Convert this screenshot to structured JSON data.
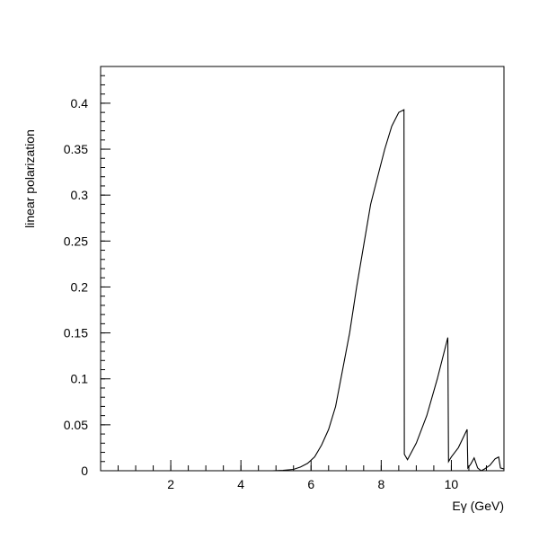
{
  "chart_data": {
    "type": "line",
    "title": "",
    "xlabel": "Eγ (GeV)",
    "ylabel": "linear polarization",
    "xlim": [
      0,
      11.5
    ],
    "ylim": [
      0,
      0.44
    ],
    "grid": false,
    "legend": "none",
    "line_color": "#000000",
    "x_ticks": [
      {
        "value": 2,
        "label": "2"
      },
      {
        "value": 4,
        "label": "4"
      },
      {
        "value": 6,
        "label": "6"
      },
      {
        "value": 8,
        "label": "8"
      },
      {
        "value": 10,
        "label": "10"
      }
    ],
    "y_ticks": [
      {
        "value": 0,
        "label": "0"
      },
      {
        "value": 0.05,
        "label": "0.05"
      },
      {
        "value": 0.1,
        "label": "0.1"
      },
      {
        "value": 0.15,
        "label": "0.15"
      },
      {
        "value": 0.2,
        "label": "0.2"
      },
      {
        "value": 0.25,
        "label": "0.25"
      },
      {
        "value": 0.3,
        "label": "0.3"
      },
      {
        "value": 0.35,
        "label": "0.35"
      },
      {
        "value": 0.4,
        "label": "0.4"
      }
    ],
    "series": [
      {
        "x": [
          4.9,
          5.2,
          5.5,
          5.7,
          5.9,
          6.1,
          6.3,
          6.5,
          6.7,
          6.9,
          7.1,
          7.3,
          7.5,
          7.7,
          7.9,
          8.1,
          8.3,
          8.5,
          8.65,
          8.66,
          8.75,
          9.0,
          9.3,
          9.6,
          9.9,
          9.92,
          10.0,
          10.2,
          10.45,
          10.47,
          10.55,
          10.65,
          10.75,
          10.85,
          10.95,
          11.1,
          11.25,
          11.35,
          11.4,
          11.5
        ],
        "y": [
          0.0,
          0.0005,
          0.0015,
          0.004,
          0.008,
          0.015,
          0.028,
          0.045,
          0.07,
          0.11,
          0.15,
          0.2,
          0.245,
          0.29,
          0.32,
          0.35,
          0.375,
          0.39,
          0.393,
          0.018,
          0.012,
          0.03,
          0.06,
          0.1,
          0.145,
          0.01,
          0.015,
          0.025,
          0.045,
          0.003,
          0.007,
          0.014,
          0.003,
          0.0,
          0.002,
          0.006,
          0.013,
          0.015,
          0.003,
          0.002
        ]
      }
    ]
  }
}
